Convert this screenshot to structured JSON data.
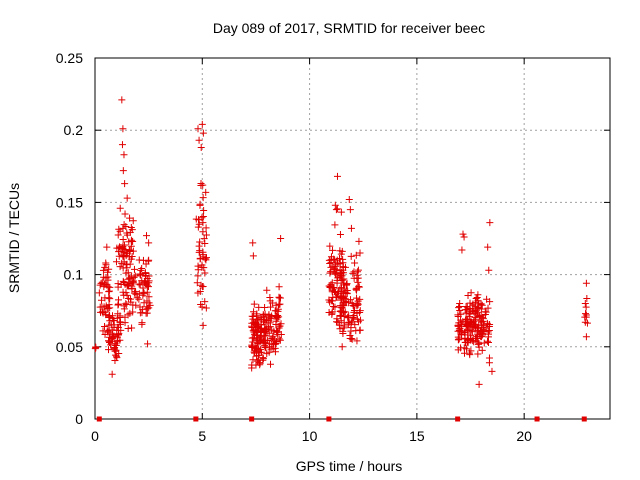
{
  "chart_data": {
    "type": "scatter",
    "title": "Day 089 of 2017, SRMTID for receiver beec",
    "xlabel": "GPS time / hours",
    "ylabel": "SRMTID / TECUs",
    "xlim": [
      0,
      24
    ],
    "ylim": [
      0,
      0.25
    ],
    "xticks": [
      0,
      5,
      10,
      15,
      20
    ],
    "yticks": [
      0,
      0.05,
      0.1,
      0.15,
      0.2,
      0.25
    ],
    "xtick_labels": [
      "0",
      "5",
      "10",
      "15",
      "20"
    ],
    "ytick_labels": [
      "0",
      "0.05",
      "0.1",
      "0.15",
      "0.2",
      "0.25"
    ],
    "grid": true,
    "marker": "+",
    "color": "#e00000",
    "zero_markers_x": [
      0.2,
      4.7,
      7.3,
      10.9,
      16.9,
      20.6,
      22.8
    ],
    "clusters": [
      {
        "x_range": [
          0.0,
          0.05
        ],
        "y_range": [
          0.038,
          0.055
        ],
        "count": 3
      },
      {
        "x_range": [
          0.2,
          0.7
        ],
        "y_range": [
          0.04,
          0.12
        ],
        "count": 45
      },
      {
        "x_range": [
          0.6,
          1.2
        ],
        "y_range": [
          0.03,
          0.09
        ],
        "count": 60
      },
      {
        "x_range": [
          1.0,
          1.8
        ],
        "y_range": [
          0.07,
          0.16
        ],
        "count": 60
      },
      {
        "x_range": [
          1.3,
          2.0
        ],
        "y_range": [
          0.05,
          0.13
        ],
        "count": 50
      },
      {
        "x_range": [
          2.0,
          2.6
        ],
        "y_range": [
          0.05,
          0.13
        ],
        "count": 50
      },
      {
        "x_range": [
          4.7,
          5.2
        ],
        "y_range": [
          0.045,
          0.2
        ],
        "count": 50
      },
      {
        "x_range": [
          7.3,
          8.0
        ],
        "y_range": [
          0.025,
          0.09
        ],
        "count": 110
      },
      {
        "x_range": [
          8.0,
          8.7
        ],
        "y_range": [
          0.03,
          0.1
        ],
        "count": 70
      },
      {
        "x_range": [
          10.9,
          11.6
        ],
        "y_range": [
          0.04,
          0.15
        ],
        "count": 90
      },
      {
        "x_range": [
          11.4,
          12.4
        ],
        "y_range": [
          0.035,
          0.13
        ],
        "count": 100
      },
      {
        "x_range": [
          16.9,
          17.4
        ],
        "y_range": [
          0.035,
          0.09
        ],
        "count": 50
      },
      {
        "x_range": [
          17.3,
          18.4
        ],
        "y_range": [
          0.035,
          0.095
        ],
        "count": 130
      },
      {
        "x_range": [
          22.8,
          22.95
        ],
        "y_range": [
          0.055,
          0.09
        ],
        "count": 6
      }
    ],
    "highlights": [
      {
        "x": 1.25,
        "y": 0.221
      },
      {
        "x": 1.3,
        "y": 0.201
      },
      {
        "x": 1.28,
        "y": 0.19
      },
      {
        "x": 1.35,
        "y": 0.183
      },
      {
        "x": 1.32,
        "y": 0.172
      },
      {
        "x": 1.38,
        "y": 0.163
      },
      {
        "x": 4.8,
        "y": 0.201
      },
      {
        "x": 5.0,
        "y": 0.204
      },
      {
        "x": 4.85,
        "y": 0.193
      },
      {
        "x": 5.05,
        "y": 0.198
      },
      {
        "x": 4.95,
        "y": 0.188
      },
      {
        "x": 5.02,
        "y": 0.162
      },
      {
        "x": 7.35,
        "y": 0.122
      },
      {
        "x": 7.38,
        "y": 0.113
      },
      {
        "x": 8.65,
        "y": 0.125
      },
      {
        "x": 11.3,
        "y": 0.168
      },
      {
        "x": 11.2,
        "y": 0.148
      },
      {
        "x": 11.25,
        "y": 0.145
      },
      {
        "x": 11.85,
        "y": 0.152
      },
      {
        "x": 11.9,
        "y": 0.145
      },
      {
        "x": 11.95,
        "y": 0.132
      },
      {
        "x": 12.3,
        "y": 0.123
      },
      {
        "x": 12.35,
        "y": 0.115
      },
      {
        "x": 17.15,
        "y": 0.128
      },
      {
        "x": 17.2,
        "y": 0.126
      },
      {
        "x": 17.1,
        "y": 0.117
      },
      {
        "x": 18.4,
        "y": 0.136
      },
      {
        "x": 18.3,
        "y": 0.119
      },
      {
        "x": 18.35,
        "y": 0.103
      },
      {
        "x": 17.9,
        "y": 0.024
      },
      {
        "x": 18.5,
        "y": 0.033
      },
      {
        "x": 22.9,
        "y": 0.094
      },
      {
        "x": 22.85,
        "y": 0.08
      },
      {
        "x": 22.9,
        "y": 0.072
      },
      {
        "x": 22.85,
        "y": 0.067
      },
      {
        "x": 22.9,
        "y": 0.057
      },
      {
        "x": 0.55,
        "y": 0.119
      },
      {
        "x": 0.5,
        "y": 0.108
      },
      {
        "x": 0.45,
        "y": 0.105
      },
      {
        "x": 2.4,
        "y": 0.127
      },
      {
        "x": 2.5,
        "y": 0.122
      },
      {
        "x": 2.45,
        "y": 0.052
      },
      {
        "x": 0.8,
        "y": 0.031
      },
      {
        "x": 1.4,
        "y": 0.142
      },
      {
        "x": 1.5,
        "y": 0.153
      }
    ]
  }
}
